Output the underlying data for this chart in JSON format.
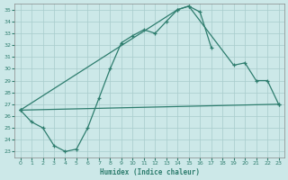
{
  "bg_color": "#cce8e8",
  "line_color": "#2e7d6e",
  "grid_color": "#a8cccc",
  "xlabel": "Humidex (Indice chaleur)",
  "xlabel_color": "#2e7d6e",
  "xlim": [
    -0.5,
    23.5
  ],
  "ylim": [
    22.5,
    35.5
  ],
  "xticks": [
    0,
    1,
    2,
    3,
    4,
    5,
    6,
    7,
    8,
    9,
    10,
    11,
    12,
    13,
    14,
    15,
    16,
    17,
    18,
    19,
    20,
    21,
    22,
    23
  ],
  "yticks": [
    23,
    24,
    25,
    26,
    27,
    28,
    29,
    30,
    31,
    32,
    33,
    34,
    35
  ],
  "line1_x": [
    0,
    1,
    2,
    3,
    4,
    5,
    6,
    7,
    8,
    9,
    10,
    11,
    12,
    13,
    14,
    15,
    16,
    17
  ],
  "line1_y": [
    26.5,
    25.5,
    25.0,
    23.5,
    23.0,
    23.2,
    25.0,
    27.5,
    30.0,
    32.2,
    32.8,
    33.3,
    33.0,
    34.0,
    35.0,
    35.3,
    34.8,
    31.8
  ],
  "line2_x": [
    0,
    14,
    15,
    19,
    20,
    21,
    22,
    23
  ],
  "line2_y": [
    26.5,
    35.0,
    35.3,
    30.3,
    30.5,
    29.0,
    29.0,
    27.0
  ],
  "line3_x": [
    0,
    23
  ],
  "line3_y": [
    26.5,
    27.0
  ],
  "line_lw": 0.9,
  "marker_size": 3.5,
  "marker_ew": 0.9
}
